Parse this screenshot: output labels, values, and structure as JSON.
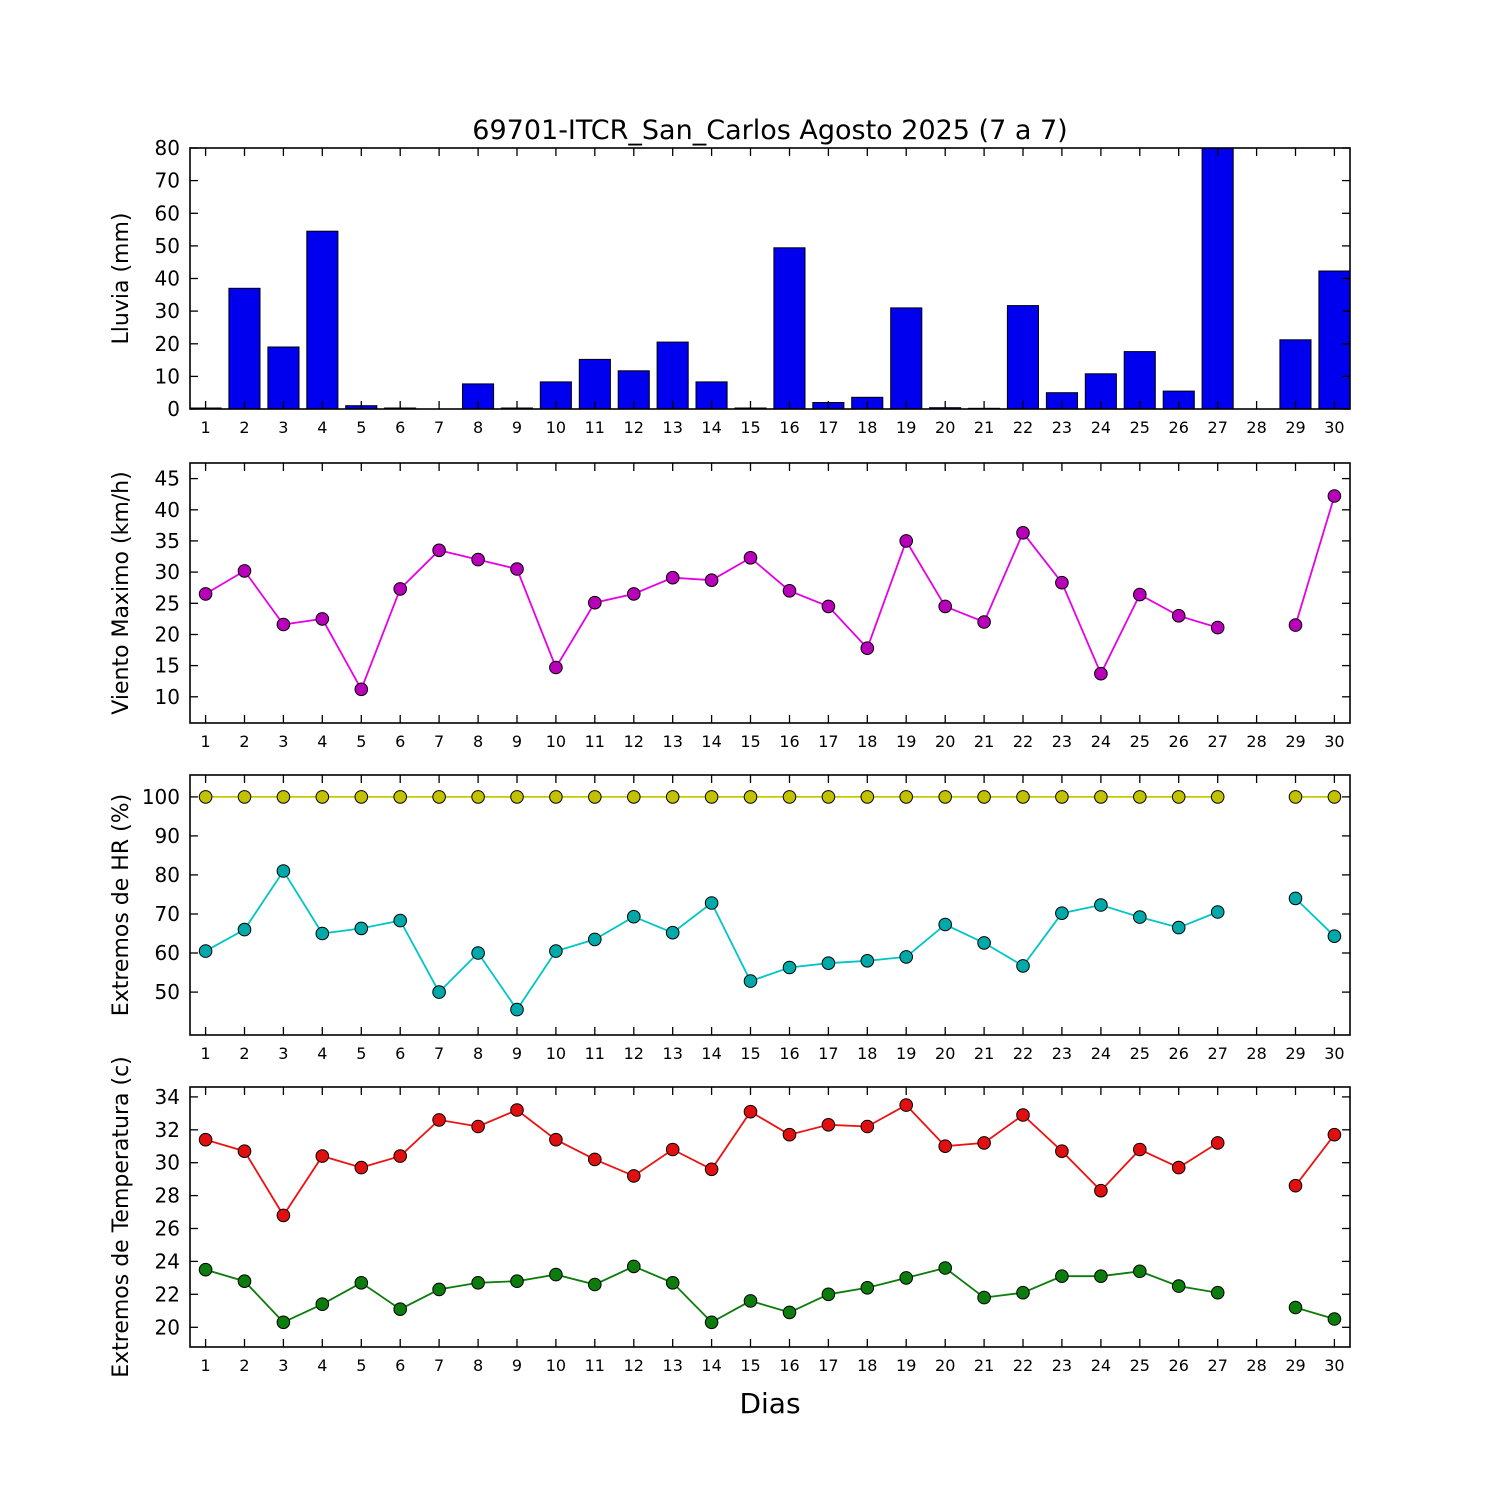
{
  "figure": {
    "title": "69701-ITCR_San_Carlos Agosto 2025  (7 a 7)",
    "xlabel": "Dias",
    "background": "#ffffff"
  },
  "days": [
    1,
    2,
    3,
    4,
    5,
    6,
    7,
    8,
    9,
    10,
    11,
    12,
    13,
    14,
    15,
    16,
    17,
    18,
    19,
    20,
    21,
    22,
    23,
    24,
    25,
    26,
    27,
    28,
    29,
    30
  ],
  "chart_data": [
    {
      "id": "lluvia",
      "type": "bar",
      "ylabel": "Lluvia (mm)",
      "ylim": [
        0,
        80
      ],
      "yticks": [
        0,
        10,
        20,
        30,
        40,
        50,
        60,
        70,
        80
      ],
      "xlim": [
        0.6,
        30.4
      ],
      "grid": false,
      "bar_color": "#0000ee",
      "bar_edge_color": "#000000",
      "values": [
        0.3,
        37,
        19,
        54.5,
        1,
        0.3,
        0,
        7.7,
        0.3,
        8.3,
        15.2,
        11.7,
        20.5,
        8.3,
        0.3,
        49.4,
        2,
        3.6,
        31,
        0.4,
        0.2,
        31.7,
        5,
        10.8,
        17.6,
        5.5,
        80,
        0,
        21.2,
        42.3
      ]
    },
    {
      "id": "viento",
      "type": "line",
      "ylabel": "Viento Maximo (km/h)",
      "ylim": [
        5.8,
        47.5
      ],
      "yticks": [
        10,
        15,
        20,
        25,
        30,
        35,
        40,
        45
      ],
      "xlim": [
        0.6,
        30.4
      ],
      "grid": false,
      "series": [
        {
          "name": "viento-maximo",
          "color": "#e600e6",
          "marker_color": "#b800b8",
          "values": [
            26.5,
            30.2,
            21.6,
            22.5,
            11.2,
            27.3,
            33.5,
            32.0,
            30.5,
            14.7,
            25.1,
            26.5,
            29.1,
            28.7,
            32.3,
            27.0,
            24.5,
            17.8,
            35.0,
            24.5,
            22.0,
            36.3,
            28.3,
            13.7,
            26.4,
            23.0,
            21.1,
            null,
            21.5,
            42.2
          ]
        }
      ]
    },
    {
      "id": "hr",
      "type": "line",
      "ylabel": "Extremos de HR (%)",
      "ylim": [
        39,
        105.6
      ],
      "yticks": [
        50,
        60,
        70,
        80,
        90,
        100
      ],
      "xlim": [
        0.6,
        30.4
      ],
      "grid": false,
      "series": [
        {
          "name": "hr-maxima",
          "color": "#c9c900",
          "marker_color": "#c2c200",
          "values": [
            100,
            100,
            100,
            100,
            100,
            100,
            100,
            100,
            100,
            100,
            100,
            100,
            100,
            100,
            100,
            100,
            100,
            100,
            100,
            100,
            100,
            100,
            100,
            100,
            100,
            100,
            100,
            null,
            100,
            100
          ]
        },
        {
          "name": "hr-minima",
          "color": "#00c5c5",
          "marker_color": "#00a9a9",
          "values": [
            60.5,
            66,
            81,
            65,
            66.3,
            68.3,
            50,
            60,
            45.5,
            60.5,
            63.5,
            69.3,
            65.2,
            72.8,
            52.8,
            56.3,
            57.4,
            58,
            59,
            67.3,
            62.6,
            56.7,
            70.2,
            72.3,
            69.2,
            66.5,
            70.5,
            null,
            74,
            64.3
          ]
        }
      ]
    },
    {
      "id": "temperatura",
      "type": "line",
      "ylabel": "Extremos de Temperatura (c)",
      "ylim": [
        18.8,
        34.6
      ],
      "yticks": [
        20,
        22,
        24,
        26,
        28,
        30,
        32,
        34
      ],
      "xlim": [
        0.6,
        30.4
      ],
      "grid": false,
      "series": [
        {
          "name": "temperatura-maxima",
          "color": "#ee1111",
          "marker_color": "#e01010",
          "values": [
            31.4,
            30.7,
            26.8,
            30.4,
            29.7,
            30.4,
            32.6,
            32.2,
            33.2,
            31.4,
            30.2,
            29.2,
            30.8,
            29.6,
            33.1,
            31.7,
            32.3,
            32.2,
            33.5,
            31.0,
            31.2,
            32.9,
            30.7,
            28.3,
            30.8,
            29.7,
            31.2,
            null,
            28.6,
            31.7
          ]
        },
        {
          "name": "temperatura-minima",
          "color": "#0c7c0c",
          "marker_color": "#0c7c0c",
          "values": [
            23.5,
            22.8,
            20.3,
            21.4,
            22.7,
            21.1,
            22.3,
            22.7,
            22.8,
            23.2,
            22.6,
            23.7,
            22.7,
            20.3,
            21.6,
            20.9,
            22.0,
            22.4,
            23.0,
            23.6,
            21.8,
            22.1,
            23.1,
            23.1,
            23.4,
            22.5,
            22.1,
            null,
            21.2,
            20.5
          ]
        }
      ]
    }
  ]
}
